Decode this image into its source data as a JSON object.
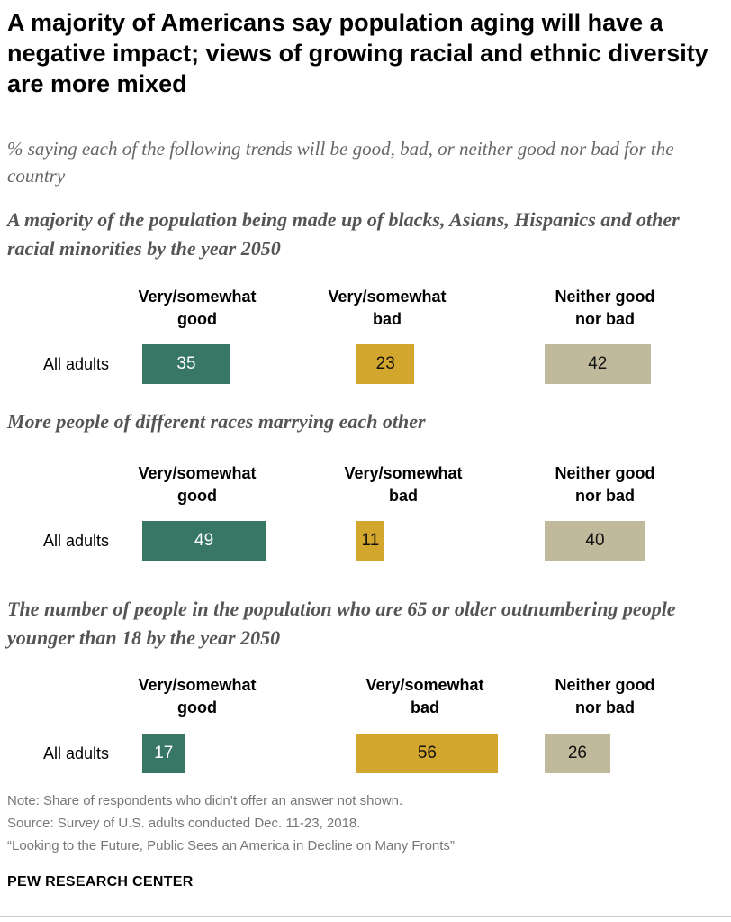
{
  "title": "A majority of Americans say population aging will have a negative impact; views of growing racial and ethnic diversity are more mixed",
  "subtitle": "% saying each of the following trends will be good, bad, or neither good nor bad for the country",
  "colors": {
    "good": "#387765",
    "bad": "#D3A62E",
    "neither": "#C1B99B"
  },
  "chart_data": [
    {
      "type": "bar",
      "title": "A majority of the population being made up of blacks, Asians, Hispanics and other racial minorities by the year 2050",
      "categories": [
        "All adults"
      ],
      "columns": [
        "Very/somewhat good",
        "Very/somewhat bad",
        "Neither good nor bad"
      ],
      "series": [
        {
          "name": "Very/somewhat good",
          "values": [
            35
          ]
        },
        {
          "name": "Very/somewhat bad",
          "values": [
            23
          ]
        },
        {
          "name": "Neither good nor bad",
          "values": [
            42
          ]
        }
      ]
    },
    {
      "type": "bar",
      "title": "More people of different races marrying each other",
      "categories": [
        "All adults"
      ],
      "columns": [
        "Very/somewhat good",
        "Very/somewhat bad",
        "Neither good nor bad"
      ],
      "series": [
        {
          "name": "Very/somewhat good",
          "values": [
            49
          ]
        },
        {
          "name": "Very/somewhat bad",
          "values": [
            11
          ]
        },
        {
          "name": "Neither good nor bad",
          "values": [
            40
          ]
        }
      ]
    },
    {
      "type": "bar",
      "title": "The number of people in the population who are 65 or older outnumbering people younger than 18 by the year 2050",
      "categories": [
        "All adults"
      ],
      "columns": [
        "Very/somewhat good",
        "Very/somewhat bad",
        "Neither good nor bad"
      ],
      "series": [
        {
          "name": "Very/somewhat good",
          "values": [
            17
          ]
        },
        {
          "name": "Very/somewhat bad",
          "values": [
            56
          ]
        },
        {
          "name": "Neither good nor bad",
          "values": [
            26
          ]
        }
      ]
    }
  ],
  "headers": {
    "good": "Very/somewhat good",
    "bad": "Very/somewhat bad",
    "neither": "Neither good nor bad"
  },
  "notes": [
    "Note: Share of respondents who didn’t offer an answer not shown.",
    "Source: Survey of U.S. adults conducted Dec. 11-23, 2018.",
    "“Looking to the Future, Public Sees an America in Decline on Many Fronts”"
  ],
  "source_org": "PEW RESEARCH CENTER"
}
